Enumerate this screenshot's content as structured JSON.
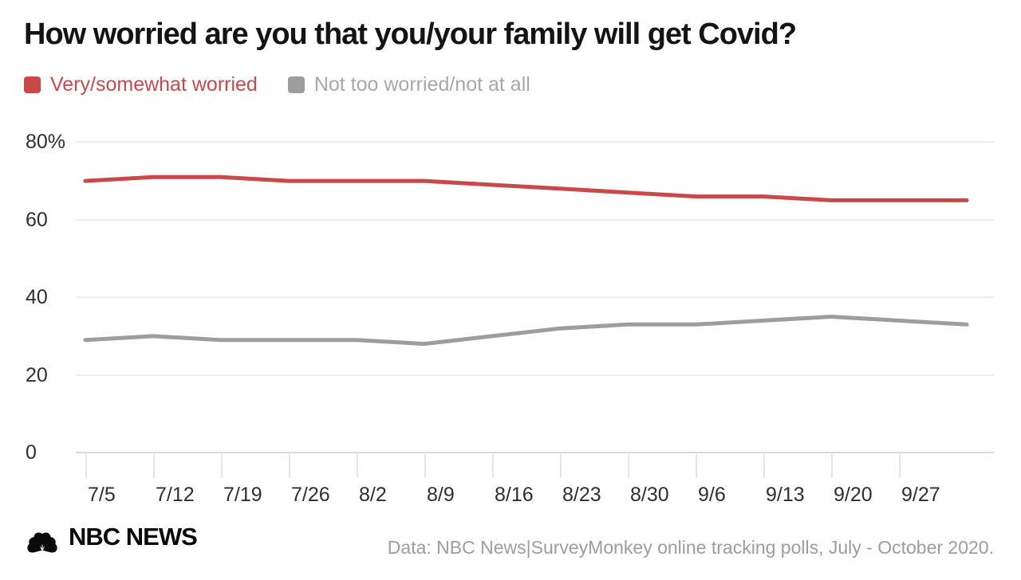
{
  "title": "How worried are you that you/your family will get Covid?",
  "legend": [
    {
      "label": "Very/somewhat worried",
      "color": "#c9494b"
    },
    {
      "label": "Not too worried/not at all",
      "color": "#9d9d9d"
    }
  ],
  "chart_data": {
    "type": "line",
    "title": "How worried are you that you/your family will get Covid?",
    "x_tick_labels": [
      "7/5",
      "7/12",
      "7/19",
      "7/26",
      "8/2",
      "8/9",
      "8/16",
      "8/23",
      "8/30",
      "9/6",
      "9/13",
      "9/20",
      "9/27"
    ],
    "y_ticks": [
      {
        "value": 80,
        "label": "80%"
      },
      {
        "value": 60,
        "label": "60"
      },
      {
        "value": 40,
        "label": "40"
      },
      {
        "value": 20,
        "label": "20"
      },
      {
        "value": 0,
        "label": "0"
      }
    ],
    "ylim": [
      0,
      80
    ],
    "grid": "horizontal",
    "legend_position": "top",
    "series": [
      {
        "name": "Very/somewhat worried",
        "color": "#c9494b",
        "values": [
          70,
          71,
          71,
          70,
          70,
          70,
          69,
          68,
          67,
          66,
          66,
          65,
          65,
          65
        ]
      },
      {
        "name": "Not too worried/not at all",
        "color": "#9d9d9d",
        "values": [
          29,
          30,
          29,
          29,
          29,
          28,
          30,
          32,
          33,
          33,
          34,
          35,
          34,
          33
        ]
      }
    ]
  },
  "footer": {
    "brand": "NBC NEWS",
    "source": "Data: NBC News|SurveyMonkey online tracking polls, July - October 2020."
  }
}
